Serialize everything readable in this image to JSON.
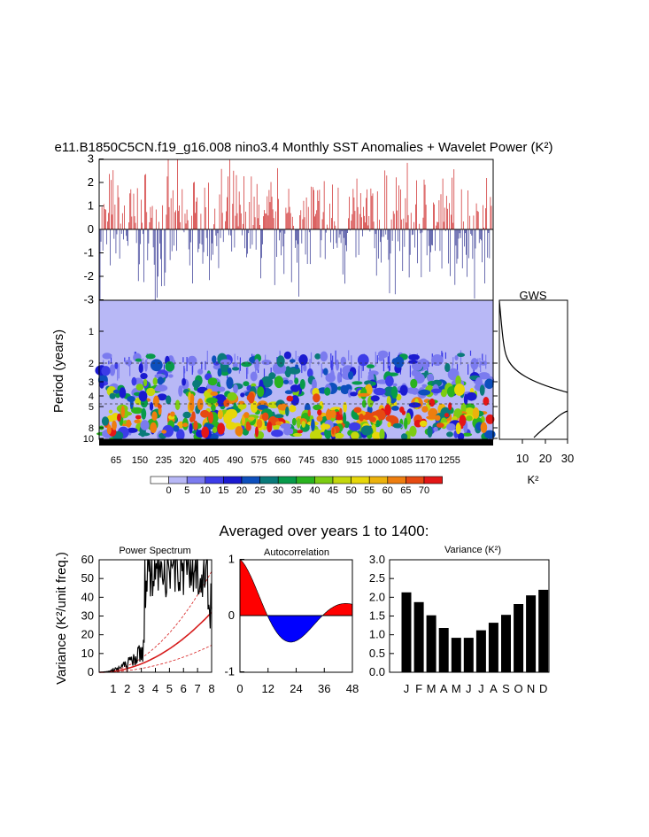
{
  "title_main": "e11.B1850C5CN.f19_g16.008 nino3.4 Monthly SST Anomalies + Wavelet Power (K²)",
  "title_avg": "Averaged over years 1 to 1400:",
  "colors": {
    "positive": "#cc1f1f",
    "negative": "#2b2f8f",
    "wavelet_bg": "#b8b8f6"
  },
  "chart_data": [
    {
      "type": "bar",
      "name": "anomaly-timeseries",
      "yticks": [
        "3",
        "2",
        "1",
        "0",
        "-1",
        "-2",
        "-3"
      ],
      "ylim": [
        -3,
        3
      ],
      "series_note": "monthly anomaly bars, positive red / negative blue"
    },
    {
      "type": "heatmap",
      "name": "wavelet-power",
      "ylabel": "Period (years)",
      "yticks": [
        "1",
        "2",
        "3",
        "4",
        "5",
        "8",
        "10"
      ],
      "xticks": [
        "65",
        "150",
        "235",
        "320",
        "405",
        "490",
        "575",
        "660",
        "745",
        "830",
        "915",
        "1000",
        "1085",
        "1170",
        "1255"
      ],
      "colorbar_levels": [
        "0",
        "5",
        "10",
        "15",
        "20",
        "25",
        "30",
        "35",
        "40",
        "45",
        "50",
        "55",
        "60",
        "65",
        "70"
      ],
      "colorbar_colors": [
        "#ffffff",
        "#b8b8f6",
        "#7b7bef",
        "#3c3ce8",
        "#1a1ad0",
        "#0d4fbd",
        "#0a7a7a",
        "#079a4a",
        "#2ab31f",
        "#7ccc12",
        "#c3d70c",
        "#e7d70a",
        "#ecb20c",
        "#ee7e0f",
        "#e64a12",
        "#e31616"
      ]
    },
    {
      "type": "line",
      "name": "gws",
      "title": "GWS",
      "xlabel": "K²",
      "xticks": [
        "10",
        "20",
        "30"
      ]
    },
    {
      "type": "line",
      "name": "power-spectrum",
      "title": "Power Spectrum",
      "ylabel": "Variance (K²/unit freq.)",
      "xticks": [
        "1",
        "2",
        "3",
        "4",
        "5",
        "6",
        "7",
        "8"
      ],
      "yticks": [
        "0",
        "10",
        "20",
        "30",
        "40",
        "50",
        "60"
      ],
      "ylim": [
        0,
        60
      ]
    },
    {
      "type": "area",
      "name": "autocorrelation",
      "title": "Autocorrelation",
      "xticks": [
        "0",
        "12",
        "24",
        "36",
        "48"
      ],
      "yticks": [
        "1",
        "0",
        "-1"
      ],
      "ylim": [
        -1,
        1
      ]
    },
    {
      "type": "bar",
      "name": "monthly-variance",
      "title": "Variance (K²)",
      "categories": [
        "J",
        "F",
        "M",
        "A",
        "M",
        "J",
        "J",
        "A",
        "S",
        "O",
        "N",
        "D"
      ],
      "values": [
        2.13,
        1.87,
        1.52,
        1.18,
        0.92,
        0.92,
        1.12,
        1.32,
        1.53,
        1.82,
        2.05,
        2.2
      ],
      "yticks": [
        "0.0",
        "0.5",
        "1.0",
        "1.5",
        "2.0",
        "2.5",
        "3.0"
      ],
      "ylim": [
        0,
        3
      ]
    }
  ]
}
